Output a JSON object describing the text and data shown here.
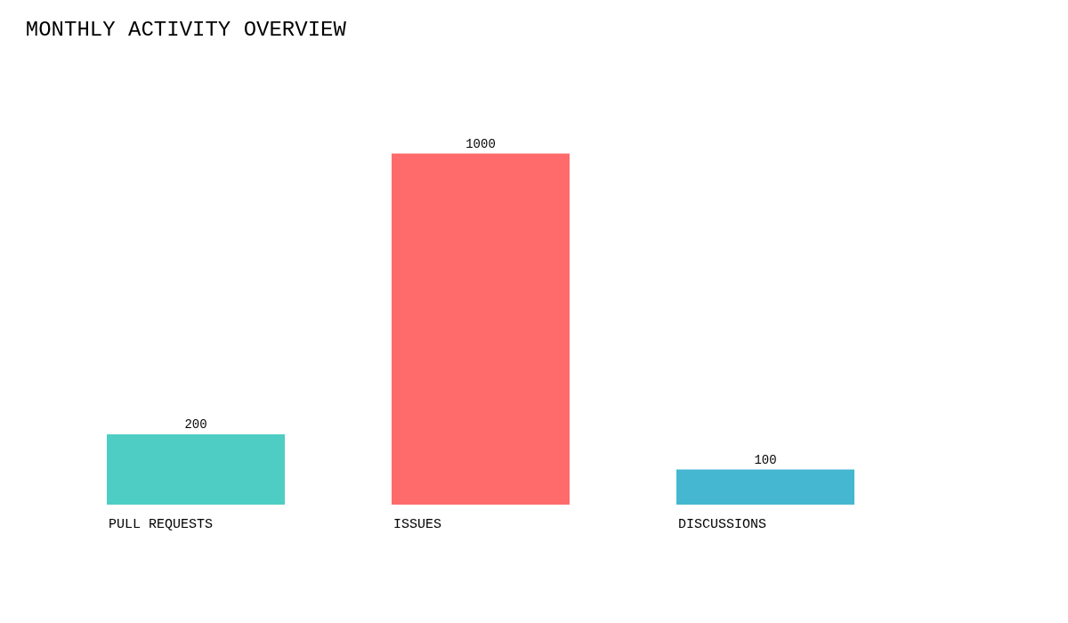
{
  "chart_data": {
    "type": "bar",
    "title": "MONTHLY ACTIVITY OVERVIEW",
    "categories": [
      "PULL REQUESTS",
      "ISSUES",
      "DISCUSSIONS"
    ],
    "values": [
      200,
      1000,
      100
    ],
    "colors": [
      "#4ecdc4",
      "#ff6b6b",
      "#45b7d1"
    ],
    "data_labels": true
  }
}
